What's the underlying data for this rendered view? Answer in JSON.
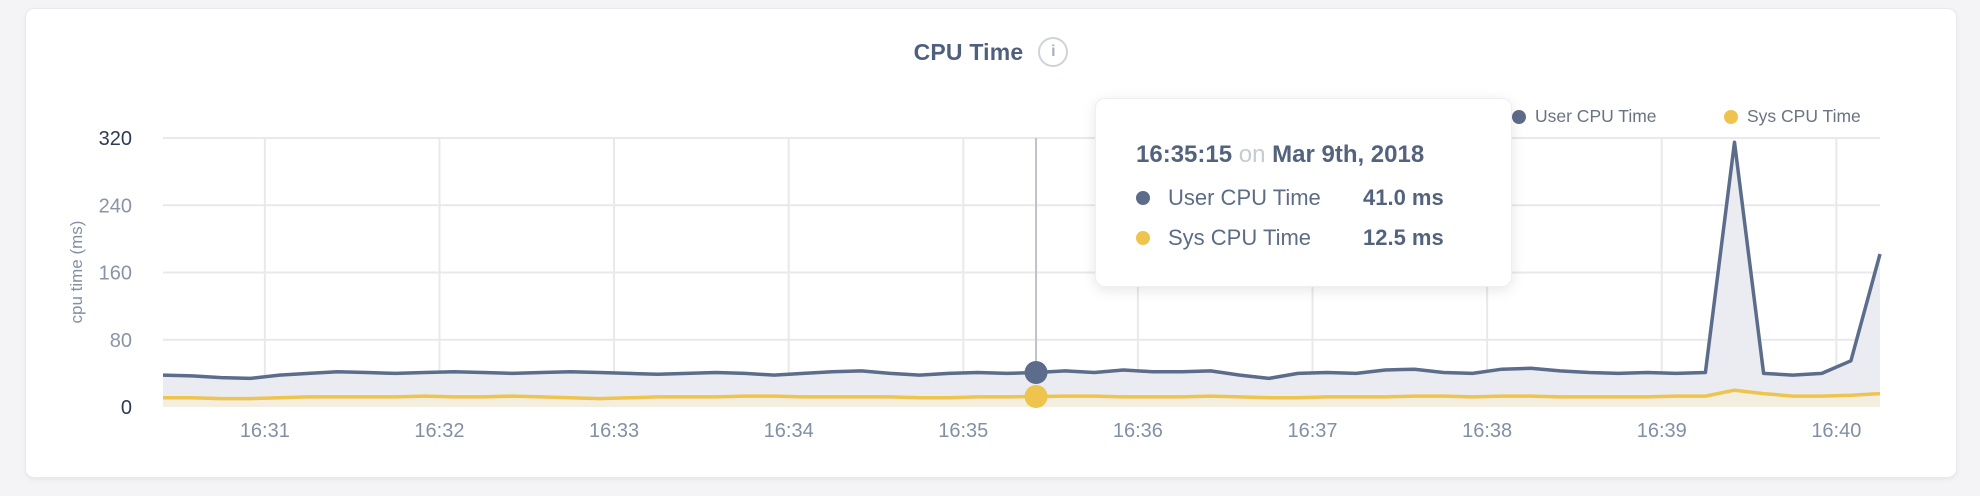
{
  "header": {
    "title": "CPU Time",
    "info_glyph": "i"
  },
  "legend": [
    {
      "label": "User CPU Time",
      "color": "#5c6c8b"
    },
    {
      "label": "Sys CPU Time",
      "color": "#eec44f"
    }
  ],
  "tooltip": {
    "time": "16:35:15",
    "connector": "on",
    "date": "Mar 9th, 2018",
    "rows": [
      {
        "label": "User CPU Time",
        "value": "41.0 ms",
        "color": "#5c6c8b"
      },
      {
        "label": "Sys CPU Time",
        "value": "12.5 ms",
        "color": "#eec44f"
      }
    ]
  },
  "chart_data": {
    "type": "area",
    "title": "CPU Time",
    "xlabel": "",
    "ylabel": "cpu time (ms)",
    "ylim": [
      0,
      320
    ],
    "yticks": [
      0,
      80,
      160,
      240,
      320
    ],
    "grid": true,
    "legend_position": "top-right",
    "xticks": [
      {
        "label": "16:31",
        "t": 60
      },
      {
        "label": "16:32",
        "t": 120
      },
      {
        "label": "16:33",
        "t": 180
      },
      {
        "label": "16:34",
        "t": 240
      },
      {
        "label": "16:35",
        "t": 300
      },
      {
        "label": "16:36",
        "t": 360
      },
      {
        "label": "16:37",
        "t": 420
      },
      {
        "label": "16:38",
        "t": 480
      },
      {
        "label": "16:39",
        "t": 540
      },
      {
        "label": "16:40",
        "t": 600
      }
    ],
    "x_seconds_after_16_30_00": [
      25,
      35,
      45,
      55,
      65,
      75,
      85,
      95,
      105,
      115,
      125,
      135,
      145,
      155,
      165,
      175,
      185,
      195,
      205,
      215,
      225,
      235,
      245,
      255,
      265,
      275,
      285,
      295,
      305,
      315,
      325,
      335,
      345,
      355,
      365,
      375,
      385,
      395,
      405,
      415,
      425,
      435,
      445,
      455,
      465,
      475,
      485,
      495,
      505,
      515,
      525,
      535,
      545,
      555,
      565,
      575,
      585,
      595,
      605,
      615
    ],
    "series": [
      {
        "name": "User CPU Time",
        "color": "#5c6c8b",
        "fill": "#eaecf1",
        "values": [
          38,
          37,
          35,
          34,
          38,
          40,
          42,
          41,
          40,
          41,
          42,
          41,
          40,
          41,
          42,
          41,
          40,
          39,
          40,
          41,
          40,
          38,
          40,
          42,
          43,
          40,
          38,
          40,
          41,
          40,
          41,
          43,
          41,
          44,
          42,
          42,
          43,
          38,
          34,
          40,
          41,
          40,
          44,
          45,
          41,
          40,
          45,
          46,
          43,
          41,
          40,
          41,
          40,
          41,
          315,
          40,
          38,
          40,
          55,
          182
        ]
      },
      {
        "name": "Sys CPU Time",
        "color": "#eec44f",
        "fill": "#f3eee0",
        "values": [
          11,
          11,
          10,
          10,
          11,
          12,
          12,
          12,
          12,
          13,
          12,
          12,
          13,
          12,
          11,
          10,
          11,
          12,
          12,
          12,
          13,
          13,
          12,
          12,
          12,
          12,
          11,
          11,
          12,
          12,
          12.5,
          13,
          13,
          12,
          12,
          12,
          13,
          12,
          11,
          11,
          12,
          12,
          12,
          13,
          13,
          12,
          13,
          13,
          12,
          12,
          12,
          12,
          13,
          13,
          20,
          16,
          13,
          13,
          14,
          16
        ]
      }
    ],
    "hover": {
      "index": 30,
      "time": "16:35:15",
      "user_ms": 41.0,
      "sys_ms": 12.5
    },
    "axis_colors": {
      "tick_minmax": "#2c3a55",
      "tick_mid": "#8a94a6",
      "xtick": "#8290a4",
      "grid": "#e9e9eb",
      "crosshair": "#bfc2c8"
    }
  }
}
